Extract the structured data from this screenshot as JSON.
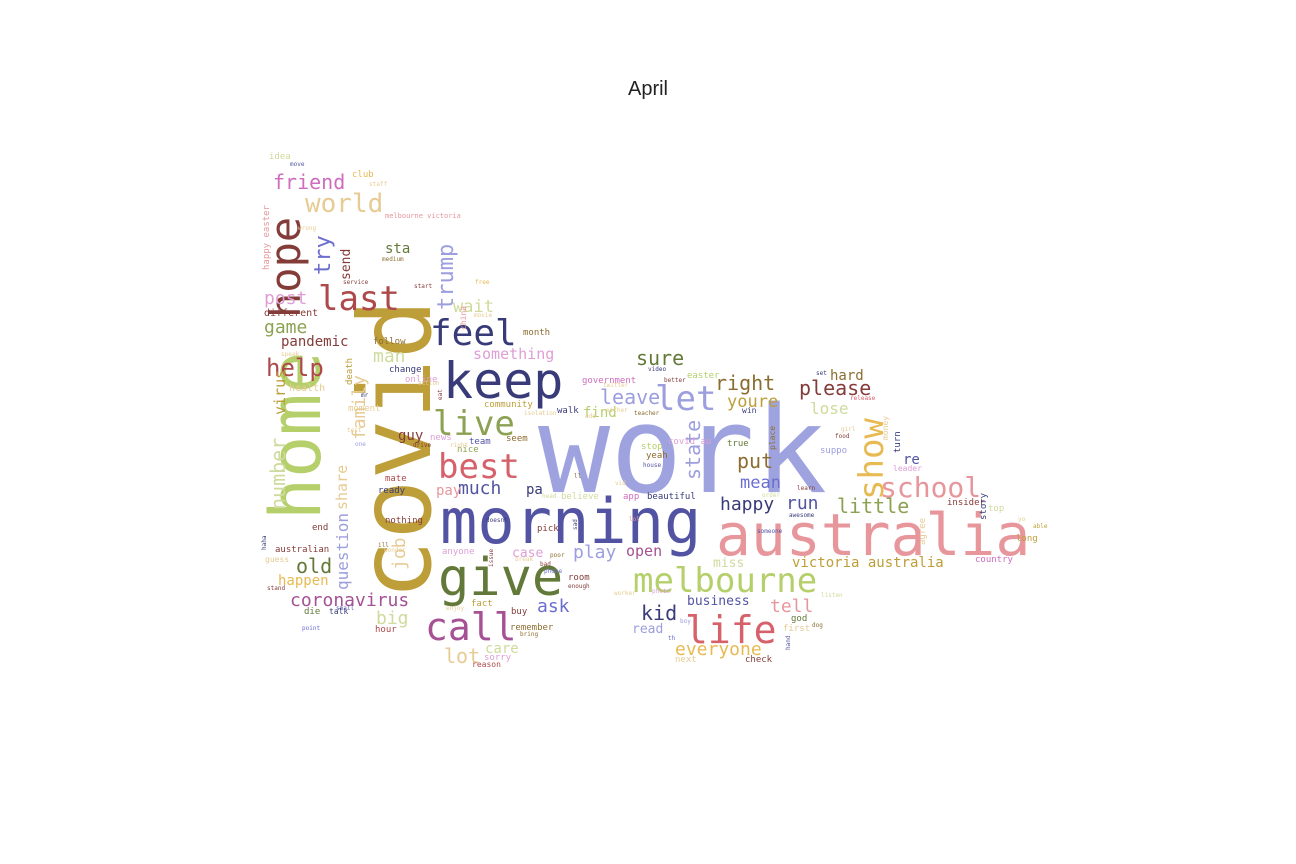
{
  "title": "April",
  "words": [
    {
      "text": "work",
      "color": "#9ea3e0"
    },
    {
      "text": "covid",
      "color": "#bd9e39"
    },
    {
      "text": "morning",
      "color": "#5254a3"
    },
    {
      "text": "australia",
      "color": "#e7969c"
    },
    {
      "text": "home",
      "color": "#b5cf6b"
    },
    {
      "text": "give",
      "color": "#637939"
    },
    {
      "text": "keep",
      "color": "#393b79"
    },
    {
      "text": "melbourne",
      "color": "#b5cf6b"
    },
    {
      "text": "call",
      "color": "#a55194"
    },
    {
      "text": "life",
      "color": "#d6616b"
    },
    {
      "text": "best",
      "color": "#d6616b"
    },
    {
      "text": "live",
      "color": "#8ca252"
    },
    {
      "text": "feel",
      "color": "#393b79"
    },
    {
      "text": "last",
      "color": "#ad494a"
    },
    {
      "text": "hope",
      "color": "#843c39"
    },
    {
      "text": "let",
      "color": "#9c9ede"
    },
    {
      "text": "show",
      "color": "#e7ba52"
    },
    {
      "text": "school",
      "color": "#e7969c"
    },
    {
      "text": "world",
      "color": "#e7cb94"
    },
    {
      "text": "friend",
      "color": "#ce6dbd"
    },
    {
      "text": "trump",
      "color": "#9c9ede"
    },
    {
      "text": "help",
      "color": "#ad494a"
    },
    {
      "text": "try",
      "color": "#6b6ecf"
    },
    {
      "text": "post",
      "color": "#de9ed6"
    },
    {
      "text": "game",
      "color": "#8ca252"
    },
    {
      "text": "wait",
      "color": "#cedb9c"
    },
    {
      "text": "sure",
      "color": "#637939"
    },
    {
      "text": "right",
      "color": "#8c6d31"
    },
    {
      "text": "please",
      "color": "#843c39"
    },
    {
      "text": "leave",
      "color": "#9c9ede"
    },
    {
      "text": "youre",
      "color": "#bd9e39"
    },
    {
      "text": "mean",
      "color": "#6b6ecf"
    },
    {
      "text": "put",
      "color": "#8c6d31"
    },
    {
      "text": "lose",
      "color": "#cedb9c"
    },
    {
      "text": "hard",
      "color": "#8c6d31"
    },
    {
      "text": "little",
      "color": "#8ca252"
    },
    {
      "text": "happy",
      "color": "#393b79"
    },
    {
      "text": "run",
      "color": "#5254a3"
    },
    {
      "text": "much",
      "color": "#5254a3"
    },
    {
      "text": "pa",
      "color": "#393b79"
    },
    {
      "text": "state",
      "color": "#9c9ede"
    },
    {
      "text": "family",
      "color": "#e7cb94"
    },
    {
      "text": "number",
      "color": "#cedb9c"
    },
    {
      "text": "virus",
      "color": "#bd9e39"
    },
    {
      "text": "man",
      "color": "#cedb9c"
    },
    {
      "text": "pandemic",
      "color": "#843c39"
    },
    {
      "text": "old",
      "color": "#637939"
    },
    {
      "text": "question",
      "color": "#9c9ede"
    },
    {
      "text": "share",
      "color": "#e7cb94"
    },
    {
      "text": "job",
      "color": "#e7cb94"
    },
    {
      "text": "coronavirus",
      "color": "#a55194"
    },
    {
      "text": "big",
      "color": "#cedb9c"
    },
    {
      "text": "happen",
      "color": "#e7ba52"
    },
    {
      "text": "lot",
      "color": "#e7cb94"
    },
    {
      "text": "care",
      "color": "#cedb9c"
    },
    {
      "text": "play",
      "color": "#9c9ede"
    },
    {
      "text": "open",
      "color": "#a55194"
    },
    {
      "text": "ask",
      "color": "#6b6ecf"
    },
    {
      "text": "kid",
      "color": "#393b79"
    },
    {
      "text": "everyone",
      "color": "#e7ba52"
    },
    {
      "text": "tell",
      "color": "#e7969c"
    },
    {
      "text": "business",
      "color": "#5254a3"
    },
    {
      "text": "miss",
      "color": "#cedb9c"
    },
    {
      "text": "victoria australia",
      "color": "#bd9e39"
    },
    {
      "text": "something",
      "color": "#de9ed6"
    },
    {
      "text": "sta",
      "color": "#637939"
    },
    {
      "text": "send",
      "color": "#843c39"
    },
    {
      "text": "guy",
      "color": "#843c39"
    },
    {
      "text": "find",
      "color": "#b5cf6b"
    },
    {
      "text": "read",
      "color": "#9c9ede"
    },
    {
      "text": "case",
      "color": "#de9ed6"
    },
    {
      "text": "pay",
      "color": "#e7969c"
    },
    {
      "text": "re",
      "color": "#5254a3"
    },
    {
      "text": "idea",
      "color": "#cedb9c"
    },
    {
      "text": "club",
      "color": "#e7ba52"
    },
    {
      "text": "melbourne victoria",
      "color": "#e7969c"
    },
    {
      "text": "happy easter",
      "color": "#e7969c"
    },
    {
      "text": "different",
      "color": "#843c39"
    },
    {
      "text": "follow",
      "color": "#8c6d31"
    },
    {
      "text": "change",
      "color": "#393b79"
    },
    {
      "text": "health",
      "color": "#e7cb94"
    },
    {
      "text": "moment",
      "color": "#e7cb94"
    },
    {
      "text": "online",
      "color": "#de9ed6"
    },
    {
      "text": "death",
      "color": "#bd9e39"
    },
    {
      "text": "community",
      "color": "#bd9e39"
    },
    {
      "text": "government",
      "color": "#ce6dbd"
    },
    {
      "text": "easter",
      "color": "#b5cf6b"
    },
    {
      "text": "walk",
      "color": "#393b79"
    },
    {
      "text": "month",
      "color": "#8c6d31"
    },
    {
      "text": "news",
      "color": "#de9ed6"
    },
    {
      "text": "team",
      "color": "#5254a3"
    },
    {
      "text": "nice",
      "color": "#8ca252"
    },
    {
      "text": "seem",
      "color": "#8c6d31"
    },
    {
      "text": "ready",
      "color": "#393b79"
    },
    {
      "text": "mate",
      "color": "#ad494a"
    },
    {
      "text": "nothing",
      "color": "#843c39"
    },
    {
      "text": "end",
      "color": "#843c39"
    },
    {
      "text": "australian",
      "color": "#843c39"
    },
    {
      "text": "guess",
      "color": "#e7cb94"
    },
    {
      "text": "die",
      "color": "#637939"
    },
    {
      "text": "talk",
      "color": "#393b79"
    },
    {
      "text": "hour",
      "color": "#ad494a"
    },
    {
      "text": "point",
      "color": "#6b6ecf"
    },
    {
      "text": "anyone",
      "color": "#de9ed6"
    },
    {
      "text": "pick",
      "color": "#843c39"
    },
    {
      "text": "room",
      "color": "#843c39"
    },
    {
      "text": "fact",
      "color": "#bd9e39"
    },
    {
      "text": "buy",
      "color": "#843c39"
    },
    {
      "text": "remember",
      "color": "#8c6d31"
    },
    {
      "text": "sorry",
      "color": "#de9ed6"
    },
    {
      "text": "believe",
      "color": "#cedb9c"
    },
    {
      "text": "beautiful",
      "color": "#393b79"
    },
    {
      "text": "app",
      "color": "#ce6dbd"
    },
    {
      "text": "stop",
      "color": "#b5cf6b"
    },
    {
      "text": "yeah",
      "color": "#8c6d31"
    },
    {
      "text": "covid au",
      "color": "#de9ed6"
    },
    {
      "text": "true",
      "color": "#637939"
    },
    {
      "text": "win",
      "color": "#393b79"
    },
    {
      "text": "place",
      "color": "#8c6d31"
    },
    {
      "text": "suppo",
      "color": "#9c9ede"
    },
    {
      "text": "turn",
      "color": "#393b79"
    },
    {
      "text": "leader",
      "color": "#de9ed6"
    },
    {
      "text": "insider",
      "color": "#843c39"
    },
    {
      "text": "top",
      "color": "#cedb9c"
    },
    {
      "text": "story",
      "color": "#393b79"
    },
    {
      "text": "agree",
      "color": "#e7cb94"
    },
    {
      "text": "long",
      "color": "#bd9e39"
    },
    {
      "text": "country",
      "color": "#ce6dbd"
    },
    {
      "text": "god",
      "color": "#637939"
    },
    {
      "text": "first",
      "color": "#e7cb94"
    },
    {
      "text": "next",
      "color": "#e7cb94"
    },
    {
      "text": "check",
      "color": "#843c39"
    },
    {
      "text": "money",
      "color": "#e7cb94"
    },
    {
      "text": "able",
      "color": "#bd9e39"
    },
    {
      "text": "video",
      "color": "#393b79"
    },
    {
      "text": "better",
      "color": "#843c39"
    },
    {
      "text": "teacher",
      "color": "#8c6d31"
    },
    {
      "text": "food",
      "color": "#843c39"
    },
    {
      "text": "house",
      "color": "#5254a3"
    },
    {
      "text": "release",
      "color": "#d6616b"
    },
    {
      "text": "learn",
      "color": "#843c39"
    },
    {
      "text": "awesome",
      "color": "#393b79"
    },
    {
      "text": "someone",
      "color": "#5254a3"
    },
    {
      "text": "listen",
      "color": "#cedb9c"
    },
    {
      "text": "dog",
      "color": "#8c6d31"
    },
    {
      "text": "hand",
      "color": "#5254a3"
    },
    {
      "text": "boy",
      "color": "#9c9ede"
    },
    {
      "text": "photo",
      "color": "#de9ed6"
    },
    {
      "text": "issue",
      "color": "#843c39"
    },
    {
      "text": "enough",
      "color": "#843c39"
    },
    {
      "text": "bring",
      "color": "#8c6d31"
    },
    {
      "text": "reason",
      "color": "#ad494a"
    },
    {
      "text": "poor",
      "color": "#8c6d31"
    },
    {
      "text": "bad",
      "color": "#843c39"
    },
    {
      "text": "phone",
      "color": "#6b6ecf"
    },
    {
      "text": "worker",
      "color": "#e7cb94"
    },
    {
      "text": "small",
      "color": "#5254a3"
    },
    {
      "text": "stand",
      "color": "#843c39"
    },
    {
      "text": "haha",
      "color": "#393b79"
    },
    {
      "text": "china",
      "color": "#e7969c"
    },
    {
      "text": "free",
      "color": "#e7ba52"
    },
    {
      "text": "start",
      "color": "#843c39"
    },
    {
      "text": "service",
      "color": "#843c39"
    },
    {
      "text": "movie",
      "color": "#e7cb94"
    },
    {
      "text": "medium",
      "color": "#8c6d31"
    },
    {
      "text": "staff",
      "color": "#e7cb94"
    },
    {
      "text": "move",
      "color": "#5254a3"
    },
    {
      "text": "speak",
      "color": "#e7cb94"
    },
    {
      "text": "break",
      "color": "#e7cb94"
    },
    {
      "text": "wrong",
      "color": "#e7cb94"
    },
    {
      "text": "drive",
      "color": "#843c39"
    },
    {
      "text": "sad",
      "color": "#393b79"
    },
    {
      "text": "doesnt",
      "color": "#393b79"
    },
    {
      "text": "head",
      "color": "#cedb9c"
    },
    {
      "text": "set",
      "color": "#393b79"
    },
    {
      "text": "wonder",
      "color": "#e7cb94"
    },
    {
      "text": "enjoy",
      "color": "#e7cb94"
    },
    {
      "text": "order",
      "color": "#cedb9c"
    },
    {
      "text": "girl",
      "color": "#e7cb94"
    },
    {
      "text": "one",
      "color": "#9c9ede"
    },
    {
      "text": "th",
      "color": "#6b6ecf"
    },
    {
      "text": "ill",
      "color": "#8c6d31"
    },
    {
      "text": "ll",
      "color": "#8c6d31"
    },
    {
      "text": "lol",
      "color": "#e7969c"
    },
    {
      "text": "mr",
      "color": "#393b79"
    },
    {
      "text": "eat",
      "color": "#843c39"
    },
    {
      "text": "yo",
      "color": "#e7cb94"
    },
    {
      "text": "action",
      "color": "#e7cb94"
    },
    {
      "text": "right",
      "color": "#e7cb94"
    },
    {
      "text": "isolation",
      "color": "#e7cb94"
    },
    {
      "text": "twitter",
      "color": "#e7cb94"
    },
    {
      "text": "add",
      "color": "#e7cb94"
    },
    {
      "text": "test",
      "color": "#e7cb94"
    },
    {
      "text": "either",
      "color": "#e7cb94"
    },
    {
      "text": "vid",
      "color": "#e7cb94"
    },
    {
      "text": "minute",
      "color": "#e7cb94"
    },
    {
      "text": "ever",
      "color": "#e7cb94"
    },
    {
      "text": "so",
      "color": "#843c39"
    }
  ]
}
